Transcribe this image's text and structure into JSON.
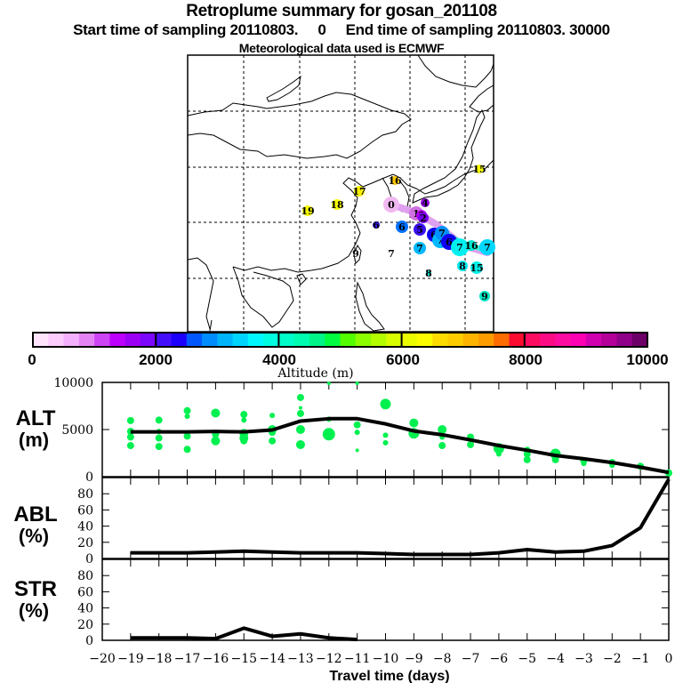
{
  "header": {
    "title": "Retroplume summary for gosan_201108",
    "subtitle": "Start time of sampling 20110803.     0     End time of sampling 20110803. 30000",
    "met_note": "Meteorological data used is ECMWF"
  },
  "map": {
    "region": "East Asia",
    "grid": "dashed lat/lon lines",
    "markers": [
      {
        "label": "0",
        "color": "#f0b8f0"
      },
      {
        "label": "1",
        "color": "#d070e0"
      },
      {
        "label": "2",
        "color": "#b000f0"
      },
      {
        "label": "3",
        "color": "#9000e0"
      },
      {
        "label": "4",
        "color": "#7a00f0"
      },
      {
        "label": "5",
        "color": "#3a10f0"
      },
      {
        "label": "6",
        "color": "#1000f0"
      },
      {
        "label": "6",
        "color": "#0070ff"
      },
      {
        "label": "7",
        "color": "#00b8ff"
      },
      {
        "label": "7",
        "color": "#00e0ff"
      },
      {
        "label": "7",
        "color": "#0090ff"
      },
      {
        "label": "7",
        "color": "#00f0f0"
      },
      {
        "label": "8",
        "color": "#00e8f0"
      },
      {
        "label": "8",
        "color": "#00e0d0"
      },
      {
        "label": "9",
        "color": "#00e8c8"
      },
      {
        "label": "9",
        "color": "#ffffff"
      },
      {
        "label": "15",
        "color": "#00f0e8"
      },
      {
        "label": "15",
        "color": "#f8ff00"
      },
      {
        "label": "16",
        "color": "#00e8d0"
      },
      {
        "label": "16",
        "color": "#ffc800"
      },
      {
        "label": "17",
        "color": "#f8f000"
      },
      {
        "label": "18",
        "color": "#f8ff00"
      },
      {
        "label": "19",
        "color": "#f8ff00"
      }
    ]
  },
  "colorbar": {
    "title": "Altitude (m)",
    "tick_labels": [
      "0",
      "2000",
      "4000",
      "6000",
      "8000",
      "10000"
    ],
    "min": 0,
    "max": 10000,
    "step": 250,
    "colors": [
      "#ffe4fc",
      "#fcccfc",
      "#f4b0fc",
      "#e484f4",
      "#cc44f4",
      "#bc00fc",
      "#9c00f4",
      "#7c08fc",
      "#4410fc",
      "#1c00fc",
      "#0058fc",
      "#008cfc",
      "#00b4fc",
      "#00d4fc",
      "#00f8fc",
      "#00fce0",
      "#00fcc8",
      "#00fcb0",
      "#00f488",
      "#00fc40",
      "#54fc00",
      "#8cfc00",
      "#b4fc00",
      "#d8fc00",
      "#ecfc00",
      "#fcfc00",
      "#fcdc00",
      "#fccc00",
      "#fcb400",
      "#fc9c00",
      "#fc6c00",
      "#fc0c30",
      "#fc0c60",
      "#fc0c84",
      "#fc0ca0",
      "#fc00b4",
      "#d000b0",
      "#b40098",
      "#900088",
      "#6c0068"
    ]
  },
  "chart_data": [
    {
      "type": "line",
      "panel": "ALT",
      "ylabel": "ALT",
      "yunit": "(m)",
      "ylim": [
        0,
        10000
      ],
      "yticks": [
        "0",
        "5000",
        "10000"
      ],
      "x": [
        -19,
        -18,
        -17,
        -16,
        -15,
        -14,
        -13,
        -12,
        -11,
        -10,
        -9,
        -8,
        -7,
        -6,
        -5,
        -4,
        -3,
        -2,
        -1,
        0
      ],
      "series": [
        {
          "name": "mean altitude",
          "values": [
            4750,
            4750,
            4750,
            4800,
            4750,
            4950,
            5900,
            6150,
            6150,
            5600,
            4850,
            4450,
            3900,
            3300,
            2800,
            2250,
            1900,
            1500,
            1000,
            450
          ]
        }
      ],
      "scatter": {
        "name": "cluster altitudes",
        "color": "#00f050",
        "points": [
          [
            -19,
            5950,
            4
          ],
          [
            -19,
            4800,
            4
          ],
          [
            -19,
            4200,
            4
          ],
          [
            -19,
            3300,
            4
          ],
          [
            -18,
            6000,
            4
          ],
          [
            -18,
            4800,
            3
          ],
          [
            -18,
            4100,
            4
          ],
          [
            -18,
            3200,
            4
          ],
          [
            -17,
            7000,
            4
          ],
          [
            -17,
            6400,
            3
          ],
          [
            -17,
            4300,
            4
          ],
          [
            -17,
            2900,
            4
          ],
          [
            -16,
            6750,
            5
          ],
          [
            -16,
            4500,
            4
          ],
          [
            -16,
            3800,
            5
          ],
          [
            -15,
            6600,
            4
          ],
          [
            -15,
            6000,
            3
          ],
          [
            -15,
            4600,
            5
          ],
          [
            -15,
            4100,
            5
          ],
          [
            -15,
            3800,
            4
          ],
          [
            -14,
            6500,
            3
          ],
          [
            -14,
            5000,
            5
          ],
          [
            -14,
            4700,
            4
          ],
          [
            -14,
            3800,
            4
          ],
          [
            -13,
            8400,
            4
          ],
          [
            -13,
            7300,
            2
          ],
          [
            -13,
            6700,
            4
          ],
          [
            -13,
            5000,
            5
          ],
          [
            -13,
            3400,
            5
          ],
          [
            -12,
            9900,
            2
          ],
          [
            -12,
            6100,
            3
          ],
          [
            -12,
            4500,
            7
          ],
          [
            -11,
            9900,
            2
          ],
          [
            -11,
            5500,
            4
          ],
          [
            -11,
            4700,
            3
          ],
          [
            -11,
            2800,
            2
          ],
          [
            -10,
            7700,
            6
          ],
          [
            -10,
            4400,
            3
          ],
          [
            -10,
            3600,
            3
          ],
          [
            -9,
            5700,
            5
          ],
          [
            -9,
            4600,
            6
          ],
          [
            -8,
            5000,
            5
          ],
          [
            -8,
            4200,
            3
          ],
          [
            -8,
            3300,
            4
          ],
          [
            -7,
            4200,
            4
          ],
          [
            -7,
            3400,
            4
          ],
          [
            -6,
            3000,
            6
          ],
          [
            -6,
            2400,
            3
          ],
          [
            -5,
            2800,
            4
          ],
          [
            -5,
            2400,
            4
          ],
          [
            -5,
            1800,
            4
          ],
          [
            -4,
            2400,
            6
          ],
          [
            -4,
            1800,
            4
          ],
          [
            -3,
            1700,
            4
          ],
          [
            -3,
            1400,
            3
          ],
          [
            -2,
            1500,
            4
          ],
          [
            -2,
            1200,
            3
          ],
          [
            -1,
            1100,
            4
          ],
          [
            0,
            400,
            4
          ]
        ]
      }
    },
    {
      "type": "line",
      "panel": "ABL",
      "ylabel": "ABL",
      "yunit": "(%)",
      "ylim": [
        0,
        100
      ],
      "yticks": [
        "0",
        "20",
        "40",
        "60",
        "80"
      ],
      "x": [
        -19,
        -18,
        -17,
        -16,
        -15,
        -14,
        -13,
        -12,
        -11,
        -10,
        -9,
        -8,
        -7,
        -6,
        -5,
        -4,
        -3,
        -2,
        -1,
        0
      ],
      "series": [
        {
          "name": "boundary layer fraction",
          "values": [
            7,
            7,
            7,
            8,
            9,
            8,
            7,
            7,
            7,
            6,
            5,
            5,
            5,
            7,
            11,
            8,
            9,
            16,
            38,
            98
          ]
        }
      ]
    },
    {
      "type": "line",
      "panel": "STR",
      "ylabel": "STR",
      "yunit": "(%)",
      "ylim": [
        0,
        100
      ],
      "yticks": [
        "0",
        "20",
        "40",
        "60",
        "80"
      ],
      "x": [
        -19,
        -18,
        -17,
        -16,
        -15,
        -14,
        -13,
        -12,
        -11
      ],
      "series": [
        {
          "name": "stratosphere fraction",
          "values": [
            3,
            3,
            3,
            2,
            15,
            5,
            8,
            3,
            1
          ]
        }
      ],
      "xticks": [
        "-20",
        "-19",
        "-18",
        "-17",
        "-16",
        "-15",
        "-14",
        "-13",
        "-12",
        "-11",
        "-10",
        "-9",
        "-8",
        "-7",
        "-6",
        "-5",
        "-4",
        "-3",
        "-2",
        "-1",
        "0"
      ],
      "xlabel": "Travel time (days)",
      "xlim": [
        -20,
        0
      ]
    }
  ]
}
